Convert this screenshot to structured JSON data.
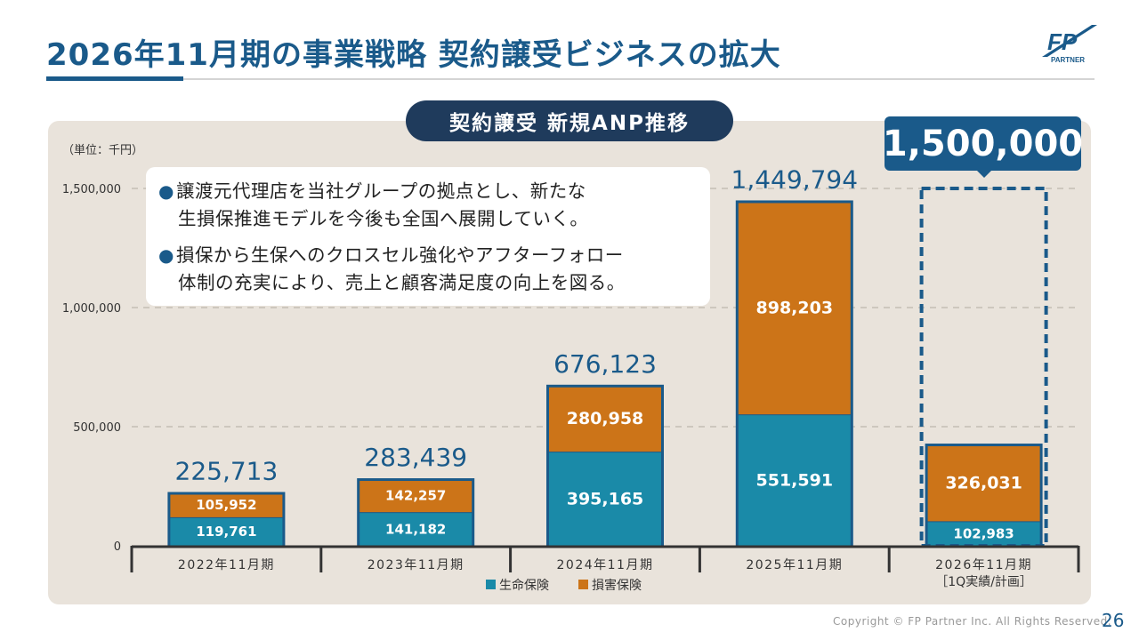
{
  "header": {
    "title": "2026年11月期の事業戦略 契約譲受ビジネスの拡大",
    "logo_text": "FP",
    "logo_sub": "PARTNER"
  },
  "chart_title": "契約譲受 新規ANP推移",
  "unit_label": "（単位：千円）",
  "bullets": [
    {
      "line1": "譲渡元代理店を当社グループの拠点とし、新たな",
      "line2": "生損保推進モデルを今後も全国へ展開していく。"
    },
    {
      "line1": "損保から生保へのクロスセル強化やアフターフォロー",
      "line2": "体制の充実により、売上と顧客満足度の向上を図る。"
    }
  ],
  "target_value": "1,500,000",
  "colors": {
    "life": "#1a8aa8",
    "nonlife": "#cc7418",
    "navy": "#1a5a8a",
    "panel": "#e9e3db"
  },
  "chart_data": {
    "type": "bar",
    "stacked": true,
    "categories": [
      "2022年11月期",
      "2023年11月期",
      "2024年11月期",
      "2025年11月期",
      "2026年11月期"
    ],
    "category_sublabels": [
      "",
      "",
      "",
      "",
      "［1Q実績/計画］"
    ],
    "series": [
      {
        "name": "生命保険",
        "values": [
          119761,
          141182,
          395165,
          551591,
          102983
        ]
      },
      {
        "name": "損害保険",
        "values": [
          105952,
          142257,
          280958,
          898203,
          326031
        ]
      }
    ],
    "totals": [
      225713,
      283439,
      676123,
      1449794,
      null
    ],
    "total_labels": [
      "225,713",
      "283,439",
      "676,123",
      "1,449,794",
      ""
    ],
    "value_labels": {
      "生命保険": [
        "119,761",
        "141,182",
        "395,165",
        "551,591",
        "102,983"
      ],
      "損害保険": [
        "105,952",
        "142,257",
        "280,958",
        "898,203",
        "326,031"
      ]
    },
    "plan_total": 1500000,
    "ylim": [
      0,
      1500000
    ],
    "yticks": [
      0,
      500000,
      1000000,
      1500000
    ],
    "ytick_labels": [
      "0",
      "500,000",
      "1,000,000",
      "1,500,000"
    ],
    "grid": true,
    "legend": [
      "生命保険",
      "損害保険"
    ],
    "legend_position": "bottom"
  },
  "footer": {
    "copyright": "Copyright © FP Partner Inc. All Rights Reserved.",
    "page": "26"
  }
}
